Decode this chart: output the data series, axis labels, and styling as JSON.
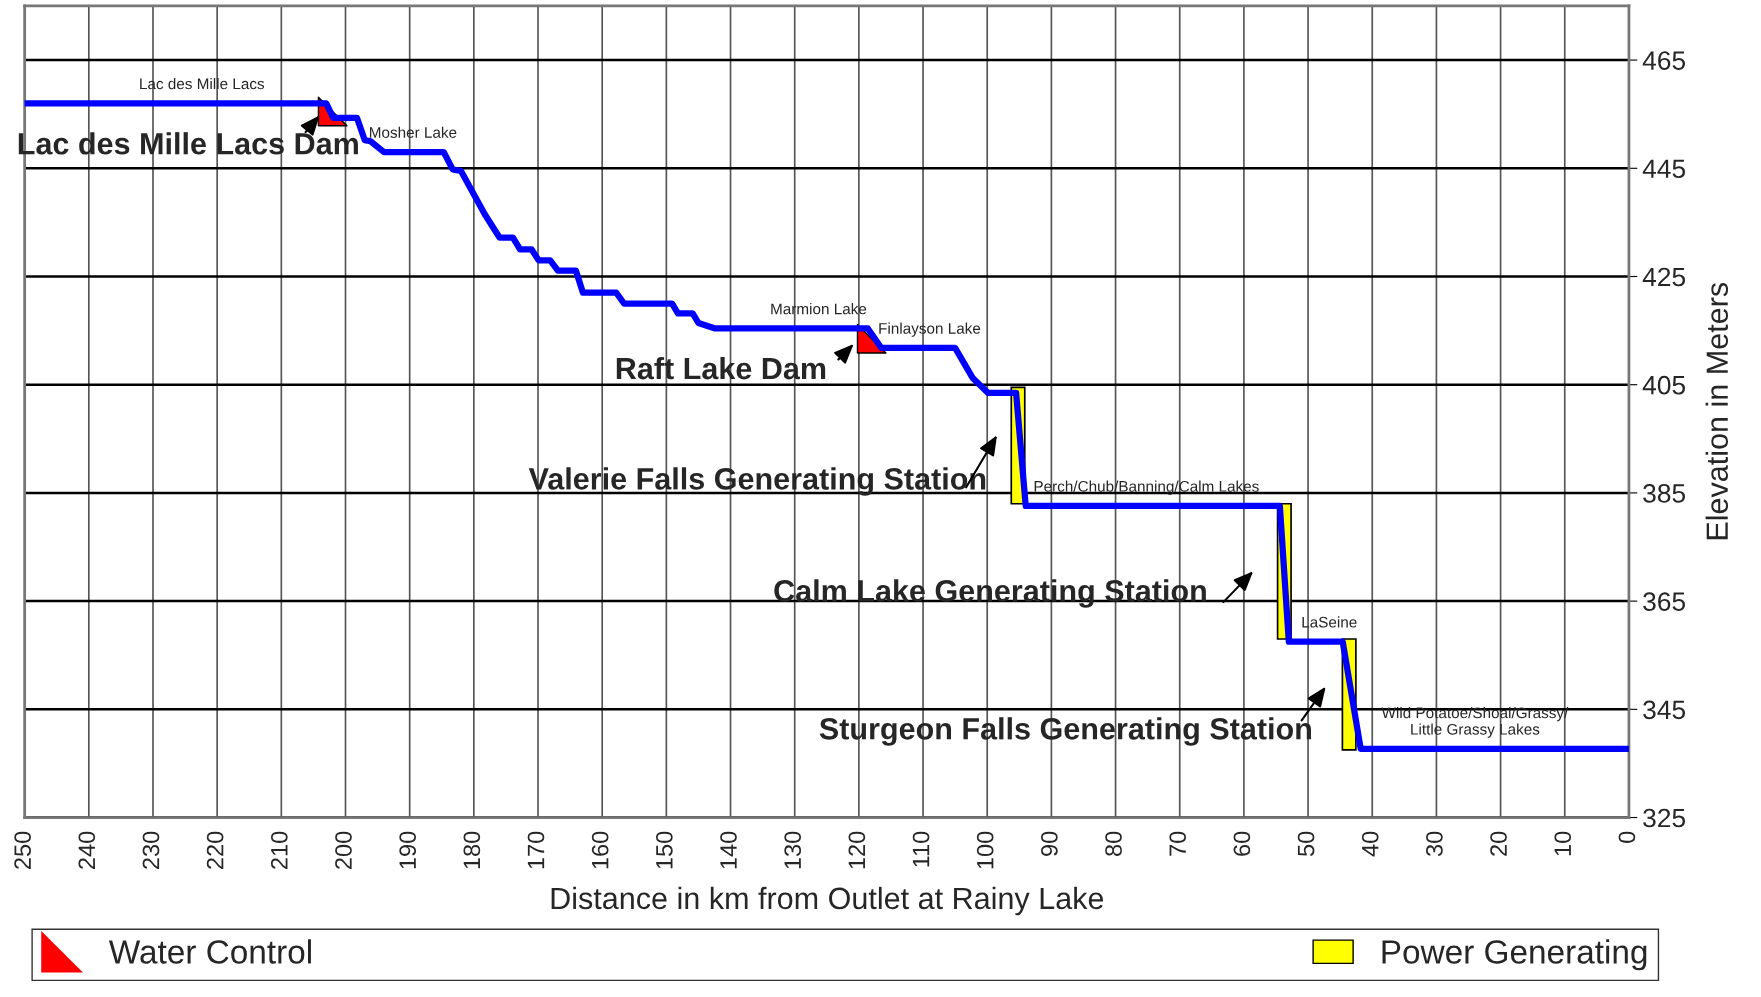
{
  "chart_data": {
    "type": "line",
    "xlabel": "Distance in km from Outlet at Rainy Lake",
    "ylabel": "Elevation in Meters",
    "xlim": [
      250,
      0
    ],
    "xticks": [
      250,
      240,
      230,
      220,
      210,
      200,
      190,
      180,
      170,
      160,
      150,
      140,
      130,
      120,
      110,
      100,
      90,
      80,
      70,
      60,
      50,
      40,
      30,
      20,
      10,
      0
    ],
    "ylim": [
      325,
      475
    ],
    "yticks": [
      325,
      345,
      365,
      385,
      405,
      425,
      445,
      465
    ],
    "grid": true,
    "legend": "bottom",
    "series": [
      {
        "color": "#0000ff",
        "x": [
          250,
          203,
          201.9,
          198.2,
          197,
          196.1,
          194,
          184.7,
          183.3,
          182,
          178.3,
          176,
          173.9,
          172.8,
          171,
          169.9,
          168.1,
          166.9,
          164.1,
          163,
          157.8,
          156.6,
          149.1,
          148.2,
          145.9,
          145,
          142.4,
          118.6,
          116.5,
          105,
          102.3,
          99.9,
          95.5,
          94,
          54.4,
          53,
          44.6,
          41.8,
          0
        ],
        "values": [
          457,
          457,
          454.3,
          454.3,
          450.2,
          450,
          448,
          448,
          444.8,
          444.5,
          436.5,
          432.2,
          432.2,
          430,
          430,
          428,
          428,
          426.1,
          426.1,
          422,
          422,
          420,
          420,
          418.2,
          418.2,
          416.4,
          415.4,
          415.4,
          411.8,
          411.8,
          406.3,
          403.5,
          403.5,
          382.6,
          382.6,
          357.5,
          357.5,
          337.7,
          337.7
        ]
      },
      {
        "type": "scatter",
        "name": "Water Control",
        "color": "#ff0000",
        "marker": "triangle",
        "x": [
          202,
          118
        ],
        "values": [
          455.5,
          413.5
        ]
      },
      {
        "type": "bar",
        "name": "Power Generating",
        "color": "#ffff00",
        "x": [
          95.2,
          53.7,
          43.6
        ],
        "base": [
          383,
          358,
          337.5
        ],
        "values": [
          21.5,
          25,
          20.5
        ]
      }
    ],
    "annotations": [
      {
        "text": "Lac des Mille Lacs",
        "x": 222.4,
        "y": 457
      },
      {
        "text": "Mosher Lake",
        "x": 189.5,
        "y": 448
      },
      {
        "text": "Marmion Lake",
        "x": 126.3,
        "y": 415.4
      },
      {
        "text": "Finlayson Lake",
        "x": 109,
        "y": 411.8
      },
      {
        "text": "Perch/Chub/Banning/Calm Lakes",
        "x": 75.2,
        "y": 382.6
      },
      {
        "text": "LaSeine",
        "x": 46.7,
        "y": 357.5
      },
      {
        "text": "Wild Potatoe/Shoal/Grassy/\nLittle Grassy Lakes",
        "x": 24,
        "y": 337.7
      },
      "Lac des Mille Lacs Dam",
      "Raft Lake Dam",
      "Valerie Falls Generating Station",
      "Calm Lake Generating Station",
      "Sturgeon Falls Generating Station"
    ]
  }
}
